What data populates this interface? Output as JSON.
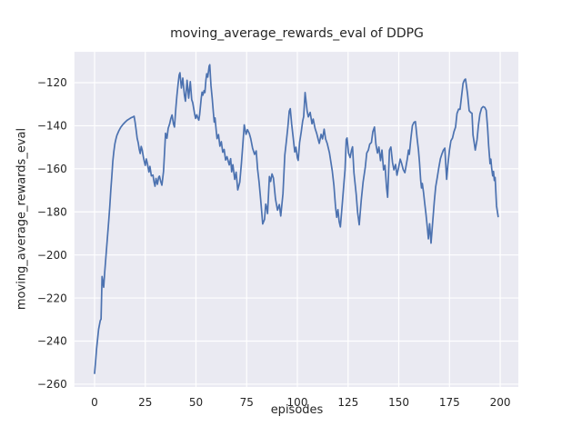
{
  "chart_data": {
    "type": "line",
    "title": "moving_average_rewards_eval of DDPG",
    "xlabel": "episodes",
    "ylabel": "moving_average_rewards_eval",
    "x_ticks": [
      0,
      25,
      50,
      75,
      100,
      125,
      150,
      175,
      200
    ],
    "x_tick_labels": [
      "0",
      "25",
      "50",
      "75",
      "100",
      "125",
      "150",
      "175",
      "200"
    ],
    "y_ticks": [
      -120,
      -140,
      -160,
      -180,
      -200,
      -220,
      -240,
      -260
    ],
    "y_tick_labels": [
      "−120",
      "−140",
      "−160",
      "−180",
      "−200",
      "−220",
      "−240",
      "−260"
    ],
    "xlim": [
      -9.95,
      208.95
    ],
    "ylim": [
      -261.3,
      -105.7
    ],
    "grid": true,
    "legend": "none",
    "style": "seaborn-darkgrid",
    "colors": {
      "line": "#4c72b0",
      "plot_bg": "#eaeaf2",
      "grid": "#ffffff",
      "text": "#262626",
      "figure_bg": "#ffffff"
    },
    "series": [
      {
        "name": "moving_average_rewards_eval",
        "x": [
          0,
          0.5,
          1,
          1.5,
          2,
          2.8,
          3.2,
          3.7,
          4.1,
          4.5,
          5,
          5.5,
          6,
          6.5,
          7,
          7.5,
          8,
          8.5,
          9,
          9.5,
          10,
          10.5,
          11,
          11.5,
          12,
          13,
          14,
          15,
          16,
          17,
          18,
          19,
          19.5,
          20,
          20.5,
          21,
          21.5,
          22,
          22.5,
          23,
          23.5,
          24,
          24.5,
          25,
          25.5,
          26,
          26.8,
          27.3,
          28,
          28.8,
          29.3,
          29.8,
          30.3,
          31,
          31.6,
          32,
          32.6,
          33.2,
          34,
          34.5,
          35,
          35.7,
          36.3,
          37,
          37.6,
          38.2,
          38.9,
          39.4,
          40.1,
          40.6,
          41.2,
          41.7,
          42.1,
          42.8,
          43.5,
          44.3,
          44.8,
          45.6,
          46.4,
          47.2,
          47.9,
          48.4,
          49.3,
          49.8,
          50.4,
          50.9,
          51.4,
          51.8,
          52.6,
          53,
          53.4,
          54,
          54.4,
          54.9,
          55.3,
          55.8,
          56.5,
          56.8,
          57.4,
          58,
          58.6,
          59,
          59.4,
          60,
          60.4,
          61.1,
          61.8,
          62.5,
          63.2,
          63.9,
          64.6,
          65.3,
          66.4,
          67.1,
          67.6,
          68.2,
          69.1,
          69.8,
          70.6,
          71.6,
          72.4,
          73,
          73.8,
          74.7,
          75.4,
          76.3,
          77,
          77.9,
          78.9,
          79.7,
          80.4,
          81.1,
          81.9,
          82.9,
          83.8,
          84.4,
          85,
          85.3,
          86.2,
          86.8,
          87.5,
          88.2,
          89.2,
          90.2,
          91.1,
          91.8,
          92.9,
          93.8,
          94.5,
          95.3,
          96,
          96.5,
          97.2,
          97.8,
          98.7,
          99.3,
          100,
          100.4,
          101.1,
          101.9,
          102.6,
          103.1,
          103.8,
          104.8,
          105.4,
          106.3,
          107.2,
          107.8,
          108.7,
          109.5,
          110.2,
          110.8,
          111.7,
          112.4,
          113.2,
          113.9,
          114.7,
          115.8,
          116.5,
          117.2,
          118,
          118.8,
          119.4,
          120,
          120.6,
          121.2,
          122.3,
          123,
          123.5,
          124.1,
          124.5,
          125.2,
          126,
          126.7,
          127.2,
          127.9,
          129,
          129.7,
          130.5,
          131.5,
          132.4,
          133.5,
          134.2,
          135,
          135.7,
          136.5,
          137.2,
          138,
          138.7,
          139.5,
          140.2,
          141,
          141.7,
          142.5,
          143.2,
          144,
          144.5,
          145.4,
          146.1,
          146.9,
          147.6,
          148.4,
          149.1,
          149.9,
          150.7,
          151.4,
          152.2,
          153,
          154.2,
          154.8,
          155.2,
          156,
          156.7,
          157.5,
          158.2,
          159,
          159.7,
          160.2,
          160.8,
          161.2,
          161.6,
          162.2,
          162.7,
          163.4,
          164.2,
          164.6,
          165.2,
          165.9,
          166.8,
          167.5,
          168.2,
          169,
          169.7,
          170.5,
          171.2,
          172,
          172.7,
          173.6,
          174.2,
          175,
          175.7,
          176.5,
          177.2,
          178,
          178.7,
          179.5,
          180.2,
          181,
          181.7,
          182.3,
          182.9,
          183.9,
          184.7,
          185.4,
          186.1,
          186.6,
          187.2,
          187.7,
          188.6,
          189.3,
          190,
          190.8,
          191.6,
          192.4,
          193.1,
          193.8,
          194.3,
          195,
          195.4,
          195.8,
          196.3,
          196.7,
          197.1,
          197.5,
          198.2,
          199
        ],
        "y": [
          -255,
          -249.5,
          -243.5,
          -239,
          -234.5,
          -230.5,
          -229.8,
          -210,
          -212.5,
          -215,
          -208,
          -202,
          -196,
          -190,
          -184,
          -177.5,
          -170,
          -163.5,
          -156.5,
          -152,
          -148.5,
          -146.3,
          -144.5,
          -143.4,
          -142.3,
          -140.6,
          -139.4,
          -138.4,
          -137.5,
          -136.9,
          -136.3,
          -135.9,
          -135.6,
          -138.5,
          -142,
          -145.8,
          -147.8,
          -150.8,
          -152.9,
          -149.6,
          -151.3,
          -154.2,
          -156.5,
          -158.4,
          -155.4,
          -157.3,
          -161.5,
          -158.9,
          -163.3,
          -162.9,
          -166,
          -168.1,
          -164.5,
          -167.2,
          -163.9,
          -163.4,
          -165.8,
          -167.6,
          -161.2,
          -152.5,
          -143.5,
          -145.8,
          -141.2,
          -139.2,
          -136.7,
          -135,
          -139.2,
          -140.6,
          -131.5,
          -126,
          -120.5,
          -116.5,
          -115.4,
          -122.5,
          -117.9,
          -125.8,
          -128.6,
          -118.9,
          -127.2,
          -119.5,
          -127.9,
          -129.3,
          -134.3,
          -136.6,
          -134.9,
          -136.4,
          -137.4,
          -134.9,
          -127.2,
          -124.4,
          -125.8,
          -123.7,
          -124.6,
          -118.8,
          -115.9,
          -117.4,
          -112.3,
          -111.7,
          -121.4,
          -127.2,
          -134.1,
          -138.3,
          -136.4,
          -142.5,
          -146,
          -144.1,
          -149.5,
          -147.4,
          -152.3,
          -151,
          -155.9,
          -154.4,
          -158.2,
          -155.3,
          -161.4,
          -158.1,
          -164.9,
          -161.6,
          -169.8,
          -166.2,
          -157.5,
          -150,
          -139.6,
          -144,
          -141.8,
          -143.6,
          -146,
          -150.4,
          -153.3,
          -151.7,
          -160.3,
          -166,
          -174.3,
          -185.6,
          -183.5,
          -176.4,
          -178.6,
          -180.8,
          -163.6,
          -165.9,
          -162.4,
          -164.3,
          -174,
          -179.2,
          -176.6,
          -181.9,
          -171.5,
          -153.6,
          -147.8,
          -140.7,
          -133.2,
          -132.1,
          -139.4,
          -144.4,
          -152.2,
          -150,
          -154.9,
          -156.1,
          -147.8,
          -142.9,
          -137.9,
          -135.8,
          -124.6,
          -133.1,
          -135.9,
          -133.8,
          -139.1,
          -136.9,
          -141.2,
          -143.5,
          -146.1,
          -148.2,
          -144,
          -146.1,
          -141.6,
          -146.1,
          -148.2,
          -152.5,
          -156.7,
          -161,
          -167.6,
          -177.5,
          -182.5,
          -179,
          -184.5,
          -187,
          -174.4,
          -166.1,
          -160.4,
          -146.4,
          -145.7,
          -152.6,
          -154.8,
          -151.3,
          -149.8,
          -161.9,
          -171.8,
          -180.2,
          -186,
          -174.5,
          -166.2,
          -159.1,
          -152.7,
          -151.3,
          -148.5,
          -147.8,
          -142.8,
          -140.6,
          -148.5,
          -152.7,
          -149.9,
          -156.2,
          -151.3,
          -160.5,
          -158.4,
          -169,
          -173.2,
          -151.3,
          -149.9,
          -157,
          -160.5,
          -158,
          -163,
          -159.5,
          -155.5,
          -157.5,
          -160.4,
          -161.8,
          -155.4,
          -151.3,
          -153.3,
          -145.6,
          -140,
          -138.4,
          -138.1,
          -145.6,
          -151.3,
          -156.9,
          -165.3,
          -168.9,
          -166.8,
          -171,
          -175.3,
          -181,
          -188.5,
          -192.5,
          -185.5,
          -194.5,
          -183.7,
          -175.3,
          -168.3,
          -163.9,
          -159.7,
          -155.4,
          -153.3,
          -151.3,
          -150.4,
          -164.9,
          -158.2,
          -151.3,
          -147,
          -145.7,
          -142.8,
          -140.6,
          -134.3,
          -132.3,
          -132.4,
          -125.9,
          -120.3,
          -118.9,
          -118.3,
          -125.2,
          -133,
          -133.8,
          -134.2,
          -144.3,
          -148,
          -151.3,
          -146.4,
          -139.5,
          -134.6,
          -131.9,
          -131.1,
          -131.5,
          -132.8,
          -141,
          -149.2,
          -157.6,
          -155.5,
          -159.7,
          -163.3,
          -161.2,
          -165.4,
          -164,
          -177.3,
          -182.2
        ]
      }
    ]
  }
}
